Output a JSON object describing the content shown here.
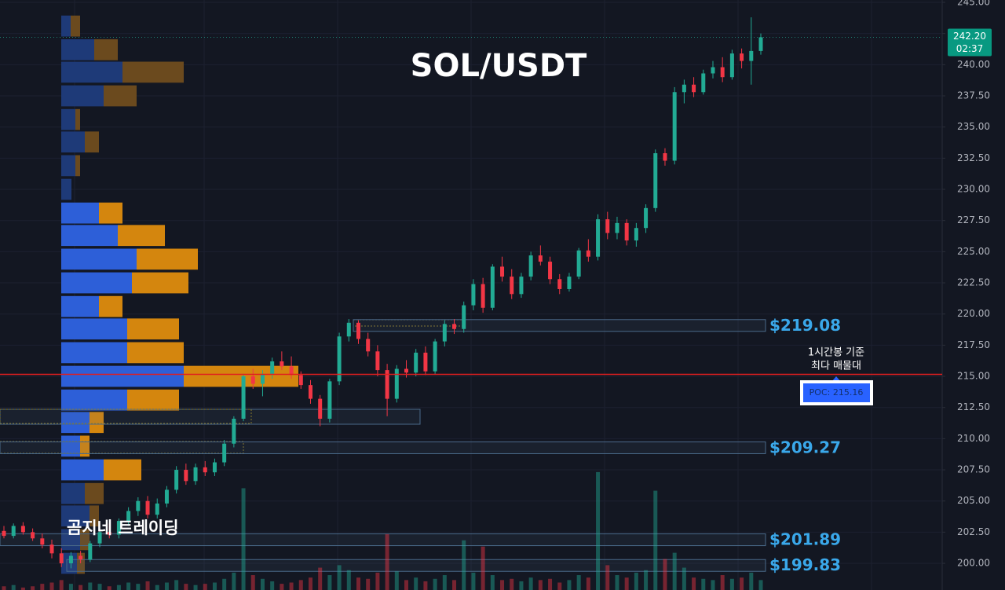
{
  "chart_data": {
    "type": "candlestick",
    "title": "SOL/USDT",
    "watermark": "곰지네 트레이딩",
    "ylim": [
      197.86,
      245.19
    ],
    "yticks": [
      {
        "value": 200,
        "label": "200.00"
      },
      {
        "value": 202.5,
        "label": "202.50"
      },
      {
        "value": 205,
        "label": "205.00"
      },
      {
        "value": 207.5,
        "label": "207.50"
      },
      {
        "value": 210,
        "label": "210.00"
      },
      {
        "value": 212.5,
        "label": "212.50"
      },
      {
        "value": 215,
        "label": "215.00"
      },
      {
        "value": 217.5,
        "label": "217.50"
      },
      {
        "value": 220,
        "label": "220.00"
      },
      {
        "value": 222.5,
        "label": "222.50"
      },
      {
        "value": 225,
        "label": "225.00"
      },
      {
        "value": 227.5,
        "label": "227.50"
      },
      {
        "value": 230,
        "label": "230.00"
      },
      {
        "value": 232.5,
        "label": "232.50"
      },
      {
        "value": 235,
        "label": "235.00"
      },
      {
        "value": 237.5,
        "label": "237.50"
      },
      {
        "value": 240,
        "label": "240.00"
      },
      {
        "value": 242.5,
        "label": "242.50"
      },
      {
        "value": 245,
        "label": "245.00"
      }
    ],
    "up_color": "#22ab94",
    "down_color": "#f23645",
    "ohlc": [
      [
        202.6,
        203.0,
        202.0,
        202.2
      ],
      [
        202.2,
        203.2,
        202.0,
        203.0
      ],
      [
        203.0,
        203.3,
        202.3,
        202.5
      ],
      [
        202.5,
        202.8,
        201.8,
        202.0
      ],
      [
        202.0,
        202.4,
        201.2,
        201.5
      ],
      [
        201.5,
        201.9,
        200.4,
        200.8
      ],
      [
        200.8,
        201.2,
        199.7,
        200.0
      ],
      [
        200.0,
        200.9,
        199.6,
        200.6
      ],
      [
        200.6,
        201.0,
        200.0,
        200.3
      ],
      [
        200.3,
        201.8,
        200.1,
        201.6
      ],
      [
        201.6,
        202.8,
        201.3,
        202.5
      ],
      [
        202.5,
        203.2,
        202.0,
        202.3
      ],
      [
        202.3,
        203.6,
        202.0,
        203.4
      ],
      [
        203.4,
        204.5,
        203.0,
        204.2
      ],
      [
        204.2,
        205.3,
        203.8,
        205.0
      ],
      [
        205.0,
        205.4,
        203.6,
        203.9
      ],
      [
        203.9,
        205.2,
        203.6,
        204.8
      ],
      [
        204.8,
        206.2,
        204.5,
        205.9
      ],
      [
        205.9,
        207.8,
        205.6,
        207.5
      ],
      [
        207.5,
        208.0,
        206.3,
        206.6
      ],
      [
        206.6,
        208.0,
        206.3,
        207.7
      ],
      [
        207.7,
        208.2,
        207.0,
        207.3
      ],
      [
        207.3,
        208.4,
        207.0,
        208.1
      ],
      [
        208.1,
        209.9,
        207.8,
        209.6
      ],
      [
        209.6,
        211.8,
        209.3,
        211.6
      ],
      [
        211.6,
        215.2,
        211.4,
        215.0
      ],
      [
        215.0,
        215.6,
        214.0,
        214.4
      ],
      [
        214.4,
        215.5,
        213.4,
        215.2
      ],
      [
        215.2,
        216.5,
        214.8,
        216.2
      ],
      [
        216.2,
        217.0,
        215.5,
        215.8
      ],
      [
        215.8,
        216.6,
        214.8,
        215.1
      ],
      [
        215.1,
        215.4,
        214.0,
        214.3
      ],
      [
        214.3,
        214.7,
        212.8,
        213.2
      ],
      [
        213.2,
        213.5,
        211.0,
        211.6
      ],
      [
        211.6,
        214.8,
        211.3,
        214.6
      ],
      [
        214.6,
        218.5,
        214.3,
        218.2
      ],
      [
        218.2,
        219.6,
        217.8,
        219.3
      ],
      [
        219.3,
        219.5,
        217.6,
        218.0
      ],
      [
        218.0,
        218.5,
        216.6,
        217.0
      ],
      [
        217.0,
        217.5,
        215.0,
        215.5
      ],
      [
        215.5,
        216.0,
        211.8,
        213.2
      ],
      [
        213.2,
        215.9,
        212.9,
        215.6
      ],
      [
        215.6,
        216.3,
        214.9,
        215.3
      ],
      [
        215.3,
        217.2,
        215.0,
        216.9
      ],
      [
        216.9,
        217.4,
        215.1,
        215.4
      ],
      [
        215.4,
        218.0,
        215.2,
        217.8
      ],
      [
        217.8,
        219.5,
        217.4,
        219.2
      ],
      [
        219.2,
        219.6,
        218.4,
        218.8
      ],
      [
        218.8,
        221.0,
        218.5,
        220.7
      ],
      [
        220.7,
        222.8,
        220.3,
        222.4
      ],
      [
        222.4,
        222.9,
        220.1,
        220.5
      ],
      [
        220.5,
        224.0,
        220.3,
        223.8
      ],
      [
        223.8,
        224.6,
        222.6,
        223.0
      ],
      [
        223.0,
        223.6,
        221.2,
        221.6
      ],
      [
        221.6,
        223.3,
        221.3,
        223.0
      ],
      [
        223.0,
        225.0,
        222.7,
        224.7
      ],
      [
        224.7,
        225.5,
        223.9,
        224.2
      ],
      [
        224.2,
        224.6,
        222.4,
        222.8
      ],
      [
        222.8,
        223.2,
        221.6,
        222.0
      ],
      [
        222.0,
        223.3,
        221.8,
        223.0
      ],
      [
        223.0,
        225.3,
        222.8,
        225.1
      ],
      [
        225.1,
        226.0,
        224.2,
        224.6
      ],
      [
        224.6,
        228.0,
        224.3,
        227.6
      ],
      [
        227.6,
        228.2,
        226.0,
        226.5
      ],
      [
        226.5,
        227.8,
        226.0,
        227.3
      ],
      [
        227.3,
        227.6,
        225.5,
        225.9
      ],
      [
        225.9,
        227.3,
        225.4,
        226.9
      ],
      [
        226.9,
        228.8,
        226.5,
        228.5
      ],
      [
        228.5,
        233.2,
        228.2,
        232.9
      ],
      [
        232.9,
        233.3,
        231.9,
        232.3
      ],
      [
        232.3,
        238.2,
        232.0,
        237.8
      ],
      [
        237.8,
        238.8,
        236.9,
        238.4
      ],
      [
        238.4,
        239.0,
        237.4,
        237.8
      ],
      [
        237.8,
        239.6,
        237.6,
        239.3
      ],
      [
        239.3,
        240.3,
        238.9,
        239.8
      ],
      [
        239.8,
        240.6,
        238.6,
        239.0
      ],
      [
        239.0,
        241.2,
        238.8,
        240.9
      ],
      [
        240.9,
        241.3,
        239.7,
        240.3
      ],
      [
        240.3,
        243.8,
        238.4,
        241.1
      ],
      [
        241.1,
        242.5,
        240.8,
        242.2
      ]
    ],
    "volumes": [
      3,
      4,
      2,
      3,
      5,
      6,
      8,
      5,
      4,
      6,
      5,
      3,
      4,
      6,
      5,
      7,
      4,
      6,
      8,
      5,
      4,
      5,
      6,
      9,
      14,
      82,
      12,
      9,
      7,
      5,
      6,
      8,
      10,
      18,
      12,
      20,
      16,
      10,
      9,
      14,
      45,
      15,
      8,
      10,
      7,
      9,
      12,
      8,
      40,
      14,
      35,
      12,
      8,
      9,
      7,
      10,
      8,
      9,
      6,
      8,
      12,
      10,
      95,
      20,
      12,
      10,
      14,
      16,
      80,
      25,
      30,
      18,
      10,
      9,
      8,
      12,
      9,
      10,
      14,
      8
    ],
    "volume_profile": {
      "prices": [
        243.1,
        241.2,
        239.4,
        237.5,
        235.6,
        233.8,
        231.9,
        230.0,
        228.1,
        226.3,
        224.4,
        222.5,
        220.6,
        218.8,
        216.9,
        215.0,
        213.1,
        211.3,
        209.4,
        207.5,
        205.6,
        203.8,
        201.9,
        200.0
      ],
      "buy": [
        12,
        42,
        78,
        54,
        18,
        30,
        18,
        13,
        48,
        72,
        96,
        90,
        48,
        84,
        84,
        156,
        84,
        36,
        24,
        54,
        30,
        36,
        24,
        20
      ],
      "sell": [
        12,
        30,
        78,
        42,
        6,
        18,
        6,
        0,
        30,
        60,
        78,
        72,
        30,
        66,
        72,
        146,
        66,
        18,
        12,
        48,
        24,
        12,
        12,
        10
      ],
      "buy_colors": [
        "#1e3a78",
        "#1e3a78",
        "#1e3a78",
        "#1e3a78",
        "#1e3a78",
        "#1e3a78",
        "#1e3a78",
        "#1e3a78",
        "#2d5fd8",
        "#2d5fd8",
        "#2d5fd8",
        "#2d5fd8",
        "#2d5fd8",
        "#2d5fd8",
        "#2d5fd8",
        "#2d5fd8",
        "#2d5fd8",
        "#2d5fd8",
        "#2d5fd8",
        "#2d5fd8",
        "#1e3a78",
        "#1e3a78",
        "#1e3a78",
        "#1e3a78"
      ],
      "sell_colors": [
        "#6b4a1e",
        "#6b4a1e",
        "#6b4a1e",
        "#6b4a1e",
        "#6b4a1e",
        "#6b4a1e",
        "#6b4a1e",
        "#6b4a1e",
        "#d4860e",
        "#d4860e",
        "#d4860e",
        "#d4860e",
        "#d4860e",
        "#d4860e",
        "#d4860e",
        "#d4860e",
        "#d4860e",
        "#d4860e",
        "#d4860e",
        "#d4860e",
        "#6b4a1e",
        "#6b4a1e",
        "#6b4a1e",
        "#6b4a1e"
      ]
    },
    "zones": [
      {
        "label": "$219.08",
        "value": 219.08
      },
      {
        "label": "$209.27",
        "value": 209.27
      },
      {
        "label": "$201.89",
        "value": 201.89
      },
      {
        "label": "$199.83",
        "value": 199.83
      }
    ],
    "poc": {
      "label": "POC: 215.16",
      "value": 215.16,
      "annotation": [
        "1시간봉 기준",
        "최다 매물대"
      ]
    },
    "last_price": {
      "label": "242.20",
      "value": 242.2,
      "countdown": "02:37"
    }
  }
}
